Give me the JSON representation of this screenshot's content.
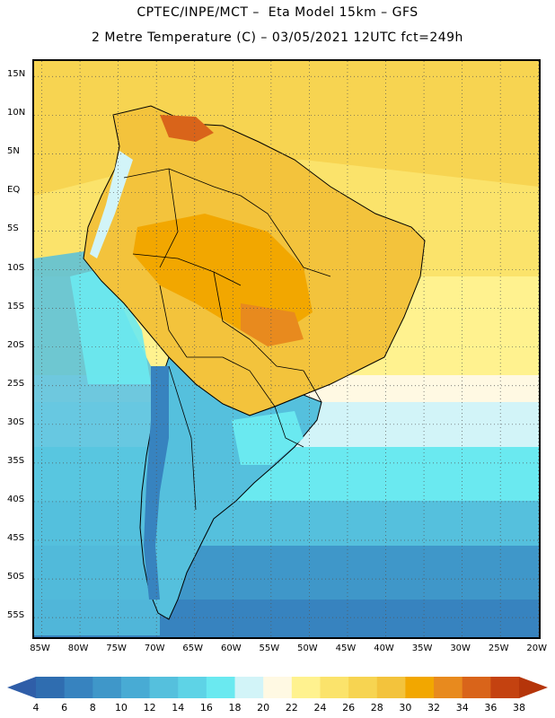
{
  "header": {
    "line1": "CPTEC/INPE/MCT –  Eta Model 15km – GFS",
    "line2": "2 Metre Temperature (C) – 03/05/2021 12UTC fct=249h"
  },
  "map": {
    "lat_labels": [
      "15N",
      "10N",
      "5N",
      "EQ",
      "5S",
      "10S",
      "15S",
      "20S",
      "25S",
      "30S",
      "35S",
      "40S",
      "45S",
      "50S",
      "55S"
    ],
    "lon_labels": [
      "85W",
      "80W",
      "75W",
      "70W",
      "65W",
      "60W",
      "55W",
      "50W",
      "45W",
      "40W",
      "35W",
      "30W",
      "25W",
      "20W"
    ],
    "lat_range": [
      17,
      -58
    ],
    "lon_range": [
      -86,
      -19.5
    ],
    "lat_ticks": [
      15,
      10,
      5,
      0,
      -5,
      -10,
      -15,
      -20,
      -25,
      -30,
      -35,
      -40,
      -45,
      -50,
      -55
    ],
    "lon_ticks": [
      -85,
      -80,
      -75,
      -70,
      -65,
      -60,
      -55,
      -50,
      -45,
      -40,
      -35,
      -30,
      -25,
      -20
    ]
  },
  "legend": {
    "ticks": [
      "4",
      "6",
      "8",
      "10",
      "12",
      "14",
      "16",
      "18",
      "20",
      "22",
      "24",
      "26",
      "28",
      "30",
      "32",
      "34",
      "36",
      "38"
    ],
    "low_color": "#2f5ea8",
    "high_color": "#b5350a",
    "colors": [
      "#2f6db0",
      "#3783bf",
      "#3f97c9",
      "#48abd4",
      "#55c0dd",
      "#5ed3e6",
      "#6ae9f0",
      "#d2f4f8",
      "#fff9e3",
      "#fff28f",
      "#fbe36b",
      "#f7d451",
      "#f3c33c",
      "#f2a700",
      "#e88a1e",
      "#d9641a",
      "#c44210"
    ]
  }
}
